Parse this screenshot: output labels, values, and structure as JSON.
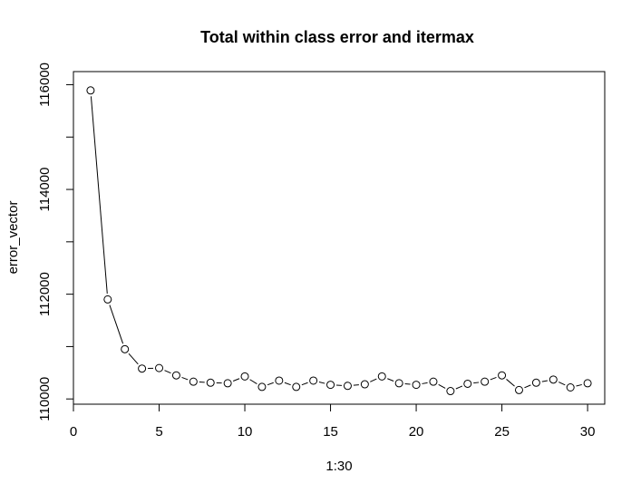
{
  "chart_data": {
    "type": "line",
    "title": "Total within class error and itermax",
    "xlabel": "1:30",
    "ylabel": "error_vector",
    "xlim": [
      0,
      31
    ],
    "ylim": [
      109900,
      116250
    ],
    "xticks": [
      0,
      5,
      10,
      15,
      20,
      25,
      30
    ],
    "yticks": [
      110000,
      112000,
      114000,
      116000
    ],
    "grid": false,
    "series": [
      {
        "x": [
          1,
          2,
          3,
          4,
          5,
          6,
          7,
          8,
          9,
          10,
          11,
          12,
          13,
          14,
          15,
          16,
          17,
          18,
          19,
          20,
          21,
          22,
          23,
          24,
          25,
          26,
          27,
          28,
          29,
          30
        ],
        "values": [
          115890,
          111900,
          110950,
          110580,
          110590,
          110450,
          110330,
          110310,
          110300,
          110430,
          110230,
          110350,
          110230,
          110350,
          110270,
          110250,
          110280,
          110430,
          110300,
          110270,
          110330,
          110150,
          110290,
          110330,
          110450,
          110170,
          110310,
          110370,
          110220,
          110300
        ]
      }
    ]
  }
}
